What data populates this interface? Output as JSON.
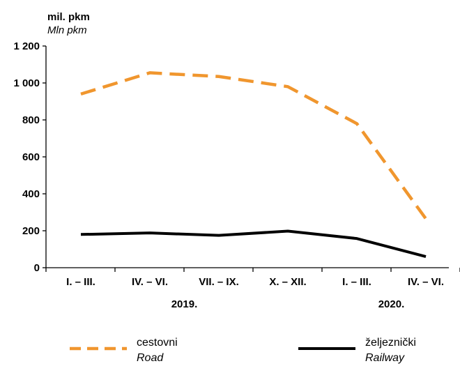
{
  "chart_data": {
    "type": "line",
    "ylabel": "mil. pkm",
    "ylabel_en": "Mln pkm",
    "ylim": [
      0,
      1200
    ],
    "yticks": [
      0,
      200,
      400,
      600,
      800,
      1000,
      1200
    ],
    "ytick_labels": [
      "0",
      "200",
      "400",
      "600",
      "800",
      "1 000",
      "1 200"
    ],
    "categories": [
      "I. – III.",
      "IV. – VI.",
      "VII. – IX.",
      "X. – XII.",
      "I. – III.",
      "IV. – VI."
    ],
    "year_labels": [
      {
        "label": "2019.",
        "category_index": 1.5
      },
      {
        "label": "2020.",
        "category_index": 4.5
      }
    ],
    "grid": false,
    "legend_position": "bottom",
    "series": [
      {
        "name": "cestovni",
        "name_en": "Road",
        "color": "#f0962e",
        "style": "dashed",
        "values": [
          940,
          1055,
          1035,
          980,
          780,
          265
        ]
      },
      {
        "name": "željeznički",
        "name_en": "Railway",
        "color": "#000000",
        "style": "solid",
        "values": [
          180,
          188,
          175,
          198,
          158,
          60
        ]
      }
    ]
  }
}
